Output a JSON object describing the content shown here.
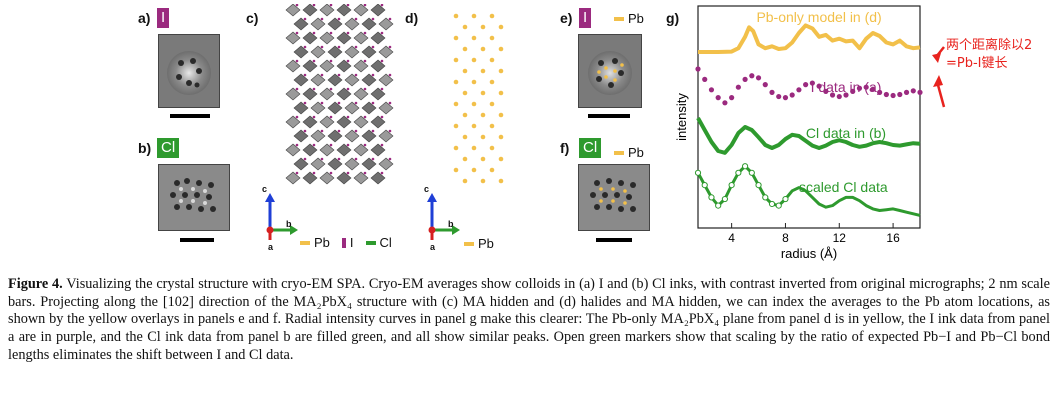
{
  "panels": {
    "a": {
      "label": "a)",
      "tag": "I"
    },
    "b": {
      "label": "b)",
      "tag": "Cl"
    },
    "c": {
      "label": "c)",
      "axes": {
        "up": "c",
        "right": "b",
        "origin": "a"
      },
      "legend": [
        "Pb",
        "I",
        "Cl"
      ]
    },
    "d": {
      "label": "d)",
      "axes": {
        "up": "c",
        "right": "b",
        "origin": "a"
      },
      "legend": [
        "Pb"
      ]
    },
    "e": {
      "label": "e)",
      "tag": "I",
      "legend": "Pb"
    },
    "f": {
      "label": "f)",
      "tag": "Cl",
      "legend": "Pb"
    },
    "g": {
      "label": "g)"
    }
  },
  "colors": {
    "Pb": "#f2c04a",
    "I": "#9b2a7f",
    "Cl": "#2e9a2e",
    "annotation": "#e8231e"
  },
  "chart_data": {
    "type": "line",
    "xlabel": "radius (Å)",
    "ylabel": "intensity",
    "xlim": [
      1.5,
      18
    ],
    "xticks": [
      "4",
      "8",
      "12",
      "16"
    ],
    "legend": "none",
    "grid": false,
    "series": [
      {
        "name": "Pb-only model in (d)",
        "color": "#f2c04a",
        "style": "solid",
        "x": [
          1.5,
          3,
          4,
          4.5,
          5,
          5.3,
          5.6,
          6,
          6.5,
          7,
          7.5,
          8,
          8.5,
          9,
          9.5,
          10,
          10.5,
          11,
          11.5,
          12,
          12.5,
          13,
          13.5,
          14,
          14.5,
          15,
          15.5,
          16,
          16.5,
          17,
          17.5,
          18
        ],
        "y": [
          0,
          0,
          0.01,
          0.1,
          0.4,
          0.65,
          0.55,
          0.2,
          0.1,
          0.15,
          0.08,
          0.1,
          0.25,
          0.5,
          0.7,
          0.62,
          0.4,
          0.45,
          0.3,
          0.35,
          0.28,
          0.3,
          0.1,
          0.35,
          0.5,
          0.42,
          0.25,
          0.2,
          0.3,
          0.15,
          0.1,
          0.12
        ]
      },
      {
        "name": "I data in (a)",
        "color": "#9b2a7f",
        "style": "markers",
        "x": [
          1.5,
          2,
          2.5,
          3,
          3.5,
          4,
          4.5,
          5,
          5.5,
          6,
          6.5,
          7,
          7.5,
          8,
          8.5,
          9,
          9.5,
          10,
          10.5,
          11,
          11.5,
          12,
          12.5,
          13,
          13.5,
          14,
          14.5,
          15,
          15.5,
          16,
          16.5,
          17,
          17.5,
          18
        ],
        "y": [
          0.75,
          0.55,
          0.35,
          0.2,
          0.1,
          0.2,
          0.4,
          0.55,
          0.62,
          0.58,
          0.45,
          0.3,
          0.22,
          0.2,
          0.25,
          0.35,
          0.45,
          0.48,
          0.42,
          0.32,
          0.25,
          0.22,
          0.25,
          0.32,
          0.38,
          0.4,
          0.36,
          0.3,
          0.26,
          0.24,
          0.26,
          0.3,
          0.33,
          0.3
        ]
      },
      {
        "name": "Cl data in (b)",
        "color": "#2e9a2e",
        "style": "solid",
        "x": [
          1.5,
          2,
          2.5,
          3,
          3.5,
          4,
          4.5,
          5,
          5.5,
          6,
          6.5,
          7,
          7.5,
          8,
          8.5,
          9,
          9.5,
          10,
          10.5,
          11,
          11.5,
          12,
          12.5,
          13,
          13.5,
          14,
          14.5,
          15,
          15.5,
          16,
          16.5,
          17,
          17.5,
          18
        ],
        "y": [
          0.7,
          0.5,
          0.3,
          0.15,
          0.12,
          0.25,
          0.45,
          0.55,
          0.5,
          0.38,
          0.25,
          0.2,
          0.25,
          0.35,
          0.42,
          0.4,
          0.32,
          0.24,
          0.2,
          0.24,
          0.3,
          0.33,
          0.3,
          0.25,
          0.22,
          0.24,
          0.28,
          0.3,
          0.28,
          0.25,
          0.24,
          0.26,
          0.28,
          0.27
        ]
      },
      {
        "name": "scaled Cl data",
        "color": "#2e9a2e",
        "style": "open-markers+solid",
        "x": [
          1.5,
          2,
          2.5,
          3,
          3.5,
          4,
          4.5,
          5,
          5.5,
          6,
          6.5,
          7,
          7.5,
          8,
          8.5,
          9,
          9.5,
          10,
          10.5,
          11,
          11.5,
          12,
          12.5,
          13,
          13.5,
          14,
          14.5,
          15,
          15.5,
          16,
          16.5,
          17,
          17.5,
          18
        ],
        "y": [
          0.6,
          0.45,
          0.3,
          0.2,
          0.28,
          0.45,
          0.6,
          0.68,
          0.6,
          0.45,
          0.3,
          0.22,
          0.2,
          0.28,
          0.38,
          0.42,
          0.38,
          0.3,
          0.22,
          0.18,
          0.2,
          0.26,
          0.3,
          0.3,
          0.26,
          0.2,
          0.16,
          0.14,
          0.15,
          0.16,
          0.14,
          0.12,
          0.1,
          0.08
        ]
      }
    ],
    "series_labels": [
      "Pb-only model in (d)",
      "I data in (a)",
      "Cl data in (b)",
      "scaled Cl data"
    ]
  },
  "annotation": {
    "line1": "两个距离除以2",
    "line2": "=Pb-I键长"
  },
  "caption": {
    "figure_label": "Figure 4.",
    "text": "Visualizing the crystal structure with cryo-EM SPA. Cryo-EM averages show colloids in (a) I and (b) Cl inks, with contrast inverted from original micrographs; 2 nm scale bars. Projecting along the [102] direction of the MA₂PbX₄ structure with (c) MA hidden and (d) halides and MA hidden, we can index the averages to the Pb atom locations, as shown by the yellow overlays in panels e and f. Radial intensity curves in panel g make this clearer: The Pb-only MA₂PbX₄ plane from panel d is in yellow, the I ink data from panel a are in purple, and the Cl ink data from panel b are filled green, and all show similar peaks. Open green markers show that scaling by the ratio of expected Pb−I and Pb−Cl bond lengths eliminates the shift between I and Cl data."
  }
}
